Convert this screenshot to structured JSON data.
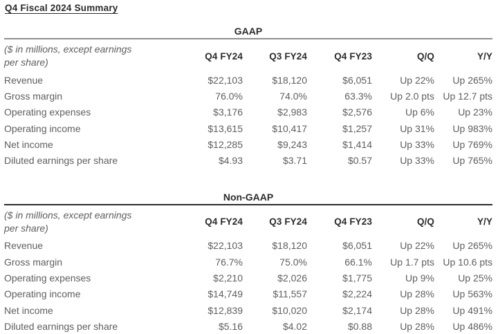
{
  "page": {
    "title": "Q4 Fiscal 2024 Summary"
  },
  "colors": {
    "background": "#ffffff",
    "heading_text": "#2b2b2b",
    "body_text": "#5e5e5e",
    "gaap_rule": "#8e8e8e",
    "non_gaap_rule": "#2a2a2a"
  },
  "tables": [
    {
      "section_title": "GAAP",
      "note": [
        "($ in millions, except earnings",
        "per share)"
      ],
      "columns": [
        "Q4 FY24",
        "Q3 FY24",
        "Q4 FY23",
        "Q/Q",
        "Y/Y"
      ],
      "rows": [
        {
          "label": "Revenue",
          "values": [
            "$22,103",
            "$18,120",
            "$6,051",
            "Up 22%",
            "Up 265%"
          ]
        },
        {
          "label": "Gross margin",
          "values": [
            "76.0%",
            "74.0%",
            "63.3%",
            "Up 2.0 pts",
            "Up 12.7 pts"
          ]
        },
        {
          "label": "Operating expenses",
          "values": [
            "$3,176",
            "$2,983",
            "$2,576",
            "Up 6%",
            "Up 23%"
          ]
        },
        {
          "label": "Operating income",
          "values": [
            "$13,615",
            "$10,417",
            "$1,257",
            "Up 31%",
            "Up 983%"
          ]
        },
        {
          "label": "Net income",
          "values": [
            "$12,285",
            "$9,243",
            "$1,414",
            "Up 33%",
            "Up 769%"
          ]
        },
        {
          "label": "Diluted earnings per share",
          "values": [
            "$4.93",
            "$3.71",
            "$0.57",
            "Up 33%",
            "Up 765%"
          ]
        }
      ]
    },
    {
      "section_title": "Non-GAAP",
      "note": [
        "($ in millions, except earnings",
        "per share)"
      ],
      "columns": [
        "Q4 FY24",
        "Q3 FY24",
        "Q4 FY23",
        "Q/Q",
        "Y/Y"
      ],
      "rows": [
        {
          "label": "Revenue",
          "values": [
            "$22,103",
            "$18,120",
            "$6,051",
            "Up 22%",
            "Up 265%"
          ]
        },
        {
          "label": "Gross margin",
          "values": [
            "76.7%",
            "75.0%",
            "66.1%",
            "Up 1.7 pts",
            "Up 10.6 pts"
          ]
        },
        {
          "label": "Operating expenses",
          "values": [
            "$2,210",
            "$2,026",
            "$1,775",
            "Up 9%",
            "Up 25%"
          ]
        },
        {
          "label": "Operating income",
          "values": [
            "$14,749",
            "$11,557",
            "$2,224",
            "Up 28%",
            "Up 563%"
          ]
        },
        {
          "label": "Net income",
          "values": [
            "$12,839",
            "$10,020",
            "$2,174",
            "Up 28%",
            "Up 491%"
          ]
        },
        {
          "label": "Diluted earnings per share",
          "values": [
            "$5.16",
            "$4.02",
            "$0.88",
            "Up 28%",
            "Up 486%"
          ]
        }
      ]
    }
  ]
}
